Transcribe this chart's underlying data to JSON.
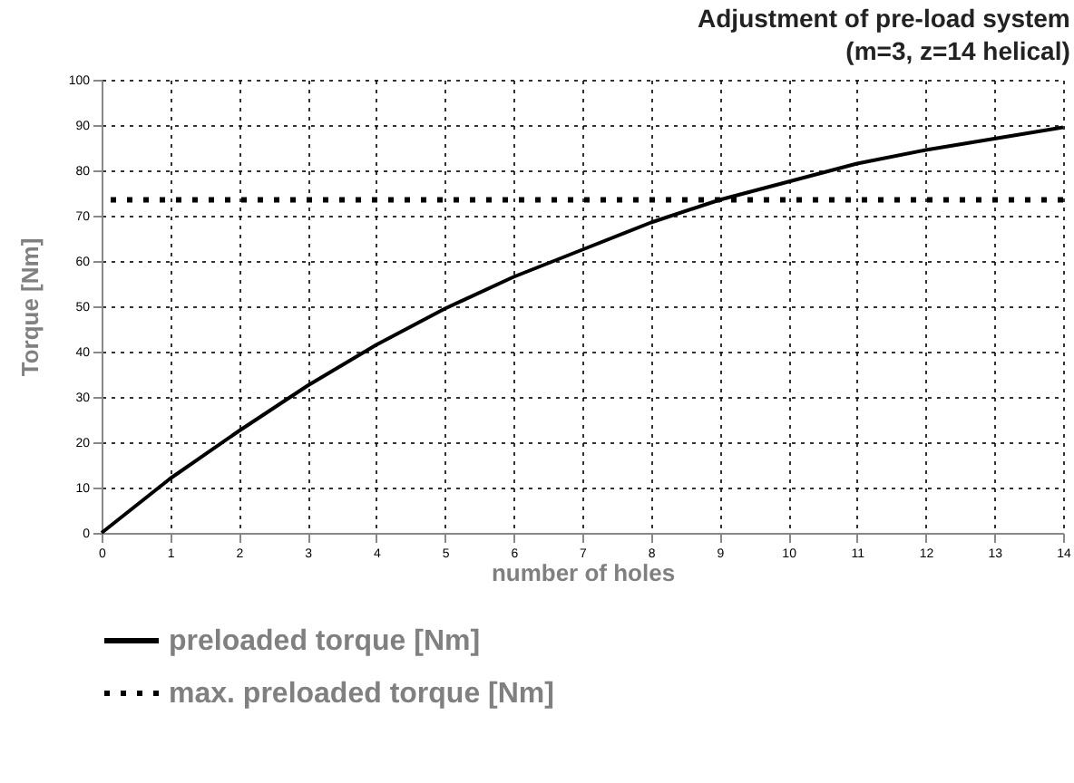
{
  "chart_data": {
    "type": "line",
    "title": "Adjustment of pre-load system",
    "subtitle": "(m=3, z=14 helical)",
    "xlabel": "number of holes",
    "ylabel": "Torque [Nm]",
    "x": [
      0,
      1,
      2,
      3,
      4,
      5,
      6,
      7,
      8,
      9,
      10,
      11,
      12,
      13,
      14
    ],
    "series": [
      {
        "name": "preloaded torque [Nm]",
        "color": "#000000",
        "values": [
          0,
          12,
          22.5,
          32.5,
          41.5,
          49.5,
          56.5,
          62.5,
          68.5,
          73.5,
          77.5,
          81.5,
          84.5,
          87,
          89.5
        ]
      }
    ],
    "ref_lines": [
      {
        "axis": "y",
        "value": 73.5,
        "label": "max. preloaded torque [Nm]",
        "color": "#000000",
        "line_style": "dotted"
      }
    ],
    "xlim": [
      0,
      14
    ],
    "xticks": [
      0,
      1,
      2,
      3,
      4,
      5,
      6,
      7,
      8,
      9,
      10,
      11,
      12,
      13,
      14
    ],
    "ylim": [
      0,
      100
    ],
    "yticks": [
      0,
      10,
      20,
      30,
      40,
      50,
      60,
      70,
      80,
      90,
      100
    ],
    "grid": true,
    "legend": "bottom",
    "marker": "none",
    "line_style": "solid"
  }
}
